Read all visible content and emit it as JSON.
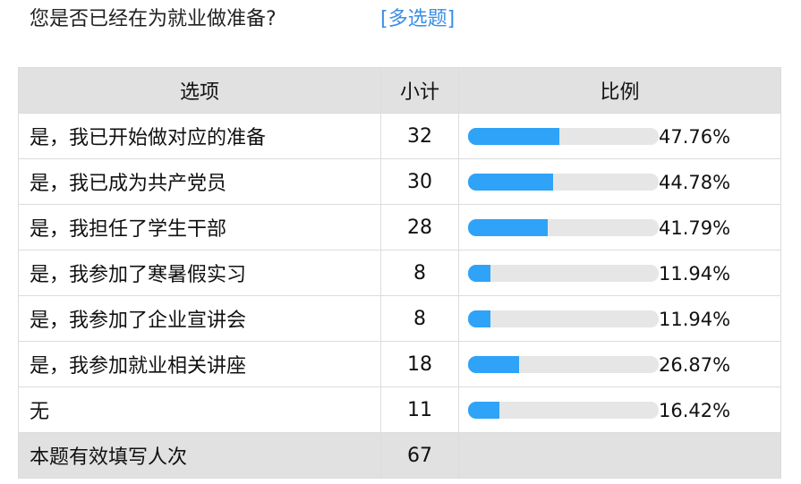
{
  "question": {
    "title": "您是否已经在为就业做准备?",
    "type_tag": "[多选题]"
  },
  "headers": [
    "选项",
    "小计",
    "比例"
  ],
  "colors": {
    "bar_fill": "#2ea3f7",
    "bar_track": "#e6e6e6",
    "tag": "#3a8ee6"
  },
  "rows": [
    {
      "option": "是，我已开始做对应的准备",
      "count": "32",
      "percent": "47.76%",
      "value": 47.76
    },
    {
      "option": "是，我已成为共产党员",
      "count": "30",
      "percent": "44.78%",
      "value": 44.78
    },
    {
      "option": "是，我担任了学生干部",
      "count": "28",
      "percent": "41.79%",
      "value": 41.79
    },
    {
      "option": "是，我参加了寒暑假实习",
      "count": "8",
      "percent": "11.94%",
      "value": 11.94
    },
    {
      "option": "是，我参加了企业宣讲会",
      "count": "8",
      "percent": "11.94%",
      "value": 11.94
    },
    {
      "option": "是，我参加就业相关讲座",
      "count": "18",
      "percent": "26.87%",
      "value": 26.87
    },
    {
      "option": "无",
      "count": "11",
      "percent": "16.42%",
      "value": 16.42
    }
  ],
  "total": {
    "label": "本题有效填写人次",
    "count": "67"
  }
}
